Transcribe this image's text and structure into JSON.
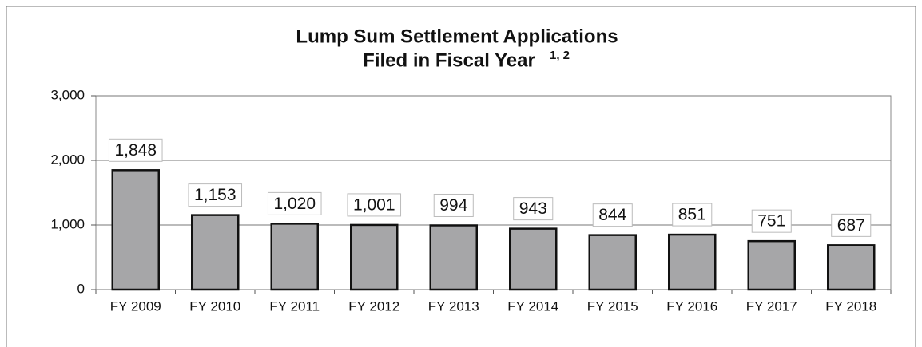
{
  "chart_data": {
    "type": "bar",
    "title": [
      "Lump Sum Settlement Applications",
      "Filed in Fiscal Year"
    ],
    "title_superscript": "1, 2",
    "categories": [
      "FY 2009",
      "FY 2010",
      "FY 2011",
      "FY 2012",
      "FY 2013",
      "FY 2014",
      "FY 2015",
      "FY 2016",
      "FY 2017",
      "FY 2018"
    ],
    "values": [
      1848,
      1153,
      1020,
      1001,
      994,
      943,
      844,
      851,
      751,
      687
    ],
    "value_labels": [
      "1,848",
      "1,153",
      "1,020",
      "1,001",
      "994",
      "943",
      "844",
      "851",
      "751",
      "687"
    ],
    "color": "#a6a6a8",
    "ylim": [
      0,
      3000
    ],
    "yticks": [
      0,
      {
        "value": 1000,
        "label": "1,000"
      },
      {
        "value": 2000,
        "label": "2,000"
      },
      {
        "value": 3000,
        "label": "3,000"
      }
    ],
    "grid": true
  }
}
